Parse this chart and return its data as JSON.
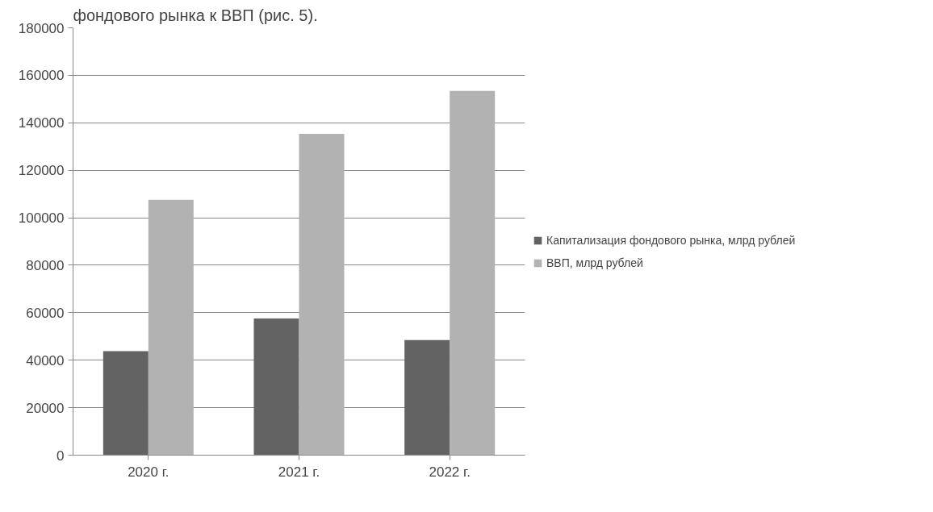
{
  "chart_data": {
    "type": "bar",
    "annotations": [
      "фондового рынка к ВВП (рис. 5)."
    ],
    "categories": [
      "2020 г.",
      "2021 г.",
      "2022 г."
    ],
    "series": [
      {
        "name": "Капитализация фондового рынка, млрд рублей",
        "color": "#636363",
        "values": [
          43800,
          57600,
          48500
        ]
      },
      {
        "name": "ВВП, млрд рублей",
        "color": "#b2b2b2",
        "values": [
          107600,
          135300,
          153400
        ]
      }
    ],
    "ylim": [
      0,
      180000
    ],
    "yticks": [
      0,
      20000,
      40000,
      60000,
      80000,
      100000,
      120000,
      140000,
      160000,
      180000
    ],
    "grid": "y",
    "legend": "right"
  }
}
